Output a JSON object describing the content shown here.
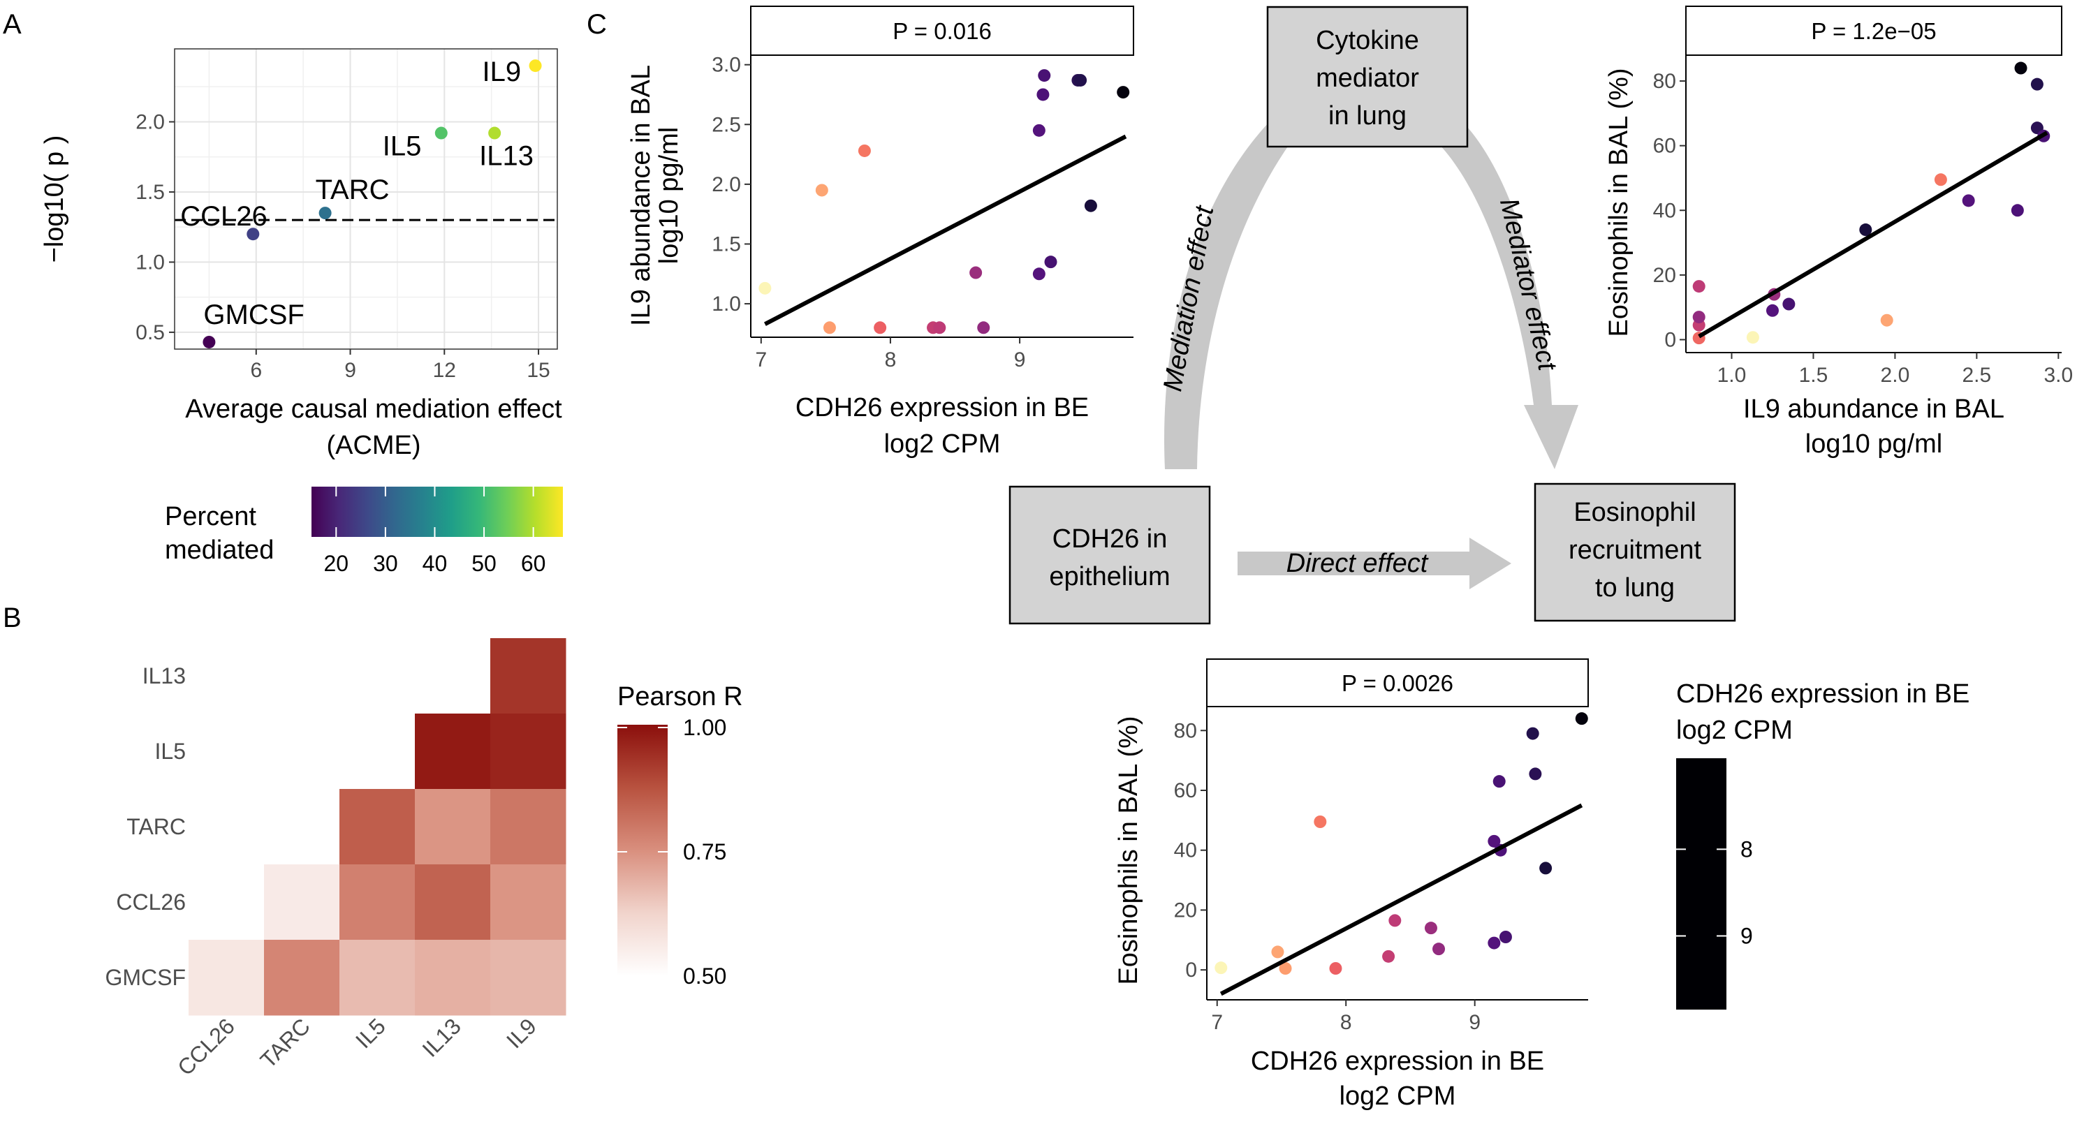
{
  "panel_labels": {
    "a": "A",
    "b": "B",
    "c": "C"
  },
  "colors": {
    "viridis": [
      "#440154",
      "#482878",
      "#3e4989",
      "#31688e",
      "#26828e",
      "#1f9e89",
      "#35b779",
      "#6ece58",
      "#b5de2b",
      "#fde725"
    ],
    "magma": [
      "#000004",
      "#1d1147",
      "#51127c",
      "#822681",
      "#b73779",
      "#e75263",
      "#fc8961",
      "#fec287",
      "#fcfdbf"
    ],
    "reds": [
      "#ffffff",
      "#f1d4cc",
      "#d98f7e",
      "#b8523f",
      "#8b0f0c"
    ]
  },
  "chart_data": [
    {
      "id": "A",
      "type": "scatter",
      "xlabel": "Average causal mediation effect",
      "xlabel2": "(ACME)",
      "ylabel": "−log10( p )",
      "xlim": [
        3.4,
        15.6
      ],
      "ylim": [
        0.38,
        2.52
      ],
      "xticks": [
        6,
        9,
        12,
        15
      ],
      "yticks": [
        0.5,
        1.0,
        1.5,
        2.0
      ],
      "ytick_labels": [
        "0.5",
        "1.0",
        "1.5",
        "2.0"
      ],
      "threshold": 1.3,
      "grid": true,
      "points": [
        {
          "label": "GMCSF",
          "x": 4.5,
          "y": 0.43,
          "pct": 14
        },
        {
          "label": "CCL26",
          "x": 5.9,
          "y": 1.2,
          "pct": 25
        },
        {
          "label": "TARC",
          "x": 8.2,
          "y": 1.35,
          "pct": 34
        },
        {
          "label": "IL5",
          "x": 11.9,
          "y": 1.92,
          "pct": 52
        },
        {
          "label": "IL13",
          "x": 13.6,
          "y": 1.92,
          "pct": 60
        },
        {
          "label": "IL9",
          "x": 14.9,
          "y": 2.4,
          "pct": 66
        }
      ],
      "legend": {
        "title_line1": "Percent",
        "title_line2": "mediated",
        "min": 15,
        "max": 66,
        "ticks": [
          20,
          30,
          40,
          50,
          60
        ]
      }
    },
    {
      "id": "B",
      "type": "heatmap",
      "row_labels": [
        "IL13",
        "IL5",
        "TARC",
        "CCL26",
        "GMCSF"
      ],
      "col_labels": [
        "CCL26",
        "TARC",
        "IL5",
        "IL13",
        "IL9"
      ],
      "cells": [
        {
          "row": "IL13",
          "col": "IL9",
          "r": 0.93
        },
        {
          "row": "IL5",
          "col": "IL13",
          "r": 0.98
        },
        {
          "row": "IL5",
          "col": "IL9",
          "r": 0.96
        },
        {
          "row": "TARC",
          "col": "IL5",
          "r": 0.85
        },
        {
          "row": "TARC",
          "col": "IL13",
          "r": 0.74
        },
        {
          "row": "TARC",
          "col": "IL9",
          "r": 0.8
        },
        {
          "row": "CCL26",
          "col": "TARC",
          "r": 0.56
        },
        {
          "row": "CCL26",
          "col": "IL5",
          "r": 0.78
        },
        {
          "row": "CCL26",
          "col": "IL13",
          "r": 0.84
        },
        {
          "row": "CCL26",
          "col": "IL9",
          "r": 0.74
        },
        {
          "row": "GMCSF",
          "col": "CCL26",
          "r": 0.57
        },
        {
          "row": "GMCSF",
          "col": "TARC",
          "r": 0.77
        },
        {
          "row": "GMCSF",
          "col": "IL5",
          "r": 0.67
        },
        {
          "row": "GMCSF",
          "col": "IL13",
          "r": 0.69
        },
        {
          "row": "GMCSF",
          "col": "IL9",
          "r": 0.68
        }
      ],
      "legend": {
        "title": "Pearson R",
        "min": 0.5,
        "max": 1.0,
        "ticks": [
          "1.00",
          "0.75",
          "0.50"
        ]
      }
    },
    {
      "id": "C1",
      "type": "scatter",
      "strip": "P = 0.016",
      "xlabel": "CDH26 expression in BE",
      "xlabel2": "log2 CPM",
      "ylabel": "IL9 abundance in BAL",
      "ylabel2": "log10 pg/ml",
      "xlim": [
        6.92,
        9.88
      ],
      "ylim": [
        0.72,
        3.08
      ],
      "xticks": [
        7,
        8,
        9
      ],
      "yticks": [
        1.0,
        1.5,
        2.0,
        2.5,
        3.0
      ],
      "ytick_labels": [
        "1.0",
        "1.5",
        "2.0",
        "2.5",
        "3.0"
      ],
      "fit": {
        "x": [
          7.03,
          9.82
        ],
        "y": [
          0.83,
          2.4
        ]
      },
      "points": [
        {
          "x": 7.03,
          "y": 1.13,
          "c": 7.0
        },
        {
          "x": 7.47,
          "y": 1.95,
          "c": 7.5
        },
        {
          "x": 7.53,
          "y": 0.8,
          "c": 7.55
        },
        {
          "x": 7.8,
          "y": 2.28,
          "c": 7.8
        },
        {
          "x": 7.92,
          "y": 0.8,
          "c": 7.95
        },
        {
          "x": 8.33,
          "y": 0.8,
          "c": 8.3
        },
        {
          "x": 8.38,
          "y": 0.8,
          "c": 8.35
        },
        {
          "x": 8.66,
          "y": 1.26,
          "c": 8.6
        },
        {
          "x": 8.72,
          "y": 0.8,
          "c": 8.65
        },
        {
          "x": 9.15,
          "y": 1.25,
          "c": 9.1
        },
        {
          "x": 9.15,
          "y": 2.45,
          "c": 9.1
        },
        {
          "x": 9.18,
          "y": 2.75,
          "c": 9.15
        },
        {
          "x": 9.19,
          "y": 2.91,
          "c": 9.18
        },
        {
          "x": 9.24,
          "y": 1.35,
          "c": 9.2
        },
        {
          "x": 9.45,
          "y": 2.87,
          "c": 9.4
        },
        {
          "x": 9.47,
          "y": 2.87,
          "c": 9.45
        },
        {
          "x": 9.55,
          "y": 1.82,
          "c": 9.55
        },
        {
          "x": 9.8,
          "y": 2.77,
          "c": 9.8
        }
      ]
    },
    {
      "id": "C2",
      "type": "scatter",
      "strip": "P = 1.2e−05",
      "xlabel": "IL9 abundance in BAL",
      "xlabel2": "log10 pg/ml",
      "ylabel": "Eosinophils in BAL (%)",
      "xlim": [
        0.72,
        3.02
      ],
      "ylim": [
        -4,
        88
      ],
      "xticks": [
        1.0,
        1.5,
        2.0,
        2.5,
        3.0
      ],
      "xtick_labels": [
        "1.0",
        "1.5",
        "2.0",
        "2.5",
        "3.0"
      ],
      "yticks": [
        0,
        20,
        40,
        60,
        80
      ],
      "fit": {
        "x": [
          0.8,
          2.93
        ],
        "y": [
          1,
          64
        ]
      },
      "points": [
        {
          "x": 0.8,
          "y": 0.5,
          "c": 7.9
        },
        {
          "x": 0.8,
          "y": 4.5,
          "c": 8.3
        },
        {
          "x": 0.8,
          "y": 7,
          "c": 8.65
        },
        {
          "x": 0.8,
          "y": 16.5,
          "c": 8.35
        },
        {
          "x": 1.13,
          "y": 0.7,
          "c": 7.0
        },
        {
          "x": 1.25,
          "y": 9,
          "c": 9.1
        },
        {
          "x": 1.26,
          "y": 14,
          "c": 8.6
        },
        {
          "x": 1.35,
          "y": 11,
          "c": 9.2
        },
        {
          "x": 1.82,
          "y": 34,
          "c": 9.55
        },
        {
          "x": 1.95,
          "y": 6,
          "c": 7.5
        },
        {
          "x": 2.28,
          "y": 49.5,
          "c": 7.8
        },
        {
          "x": 2.45,
          "y": 43,
          "c": 9.1
        },
        {
          "x": 2.75,
          "y": 40,
          "c": 9.15
        },
        {
          "x": 2.77,
          "y": 84,
          "c": 9.8
        },
        {
          "x": 2.87,
          "y": 79,
          "c": 9.45
        },
        {
          "x": 2.87,
          "y": 65.5,
          "c": 9.4
        },
        {
          "x": 2.91,
          "y": 63,
          "c": 9.18
        }
      ]
    },
    {
      "id": "C3",
      "type": "scatter",
      "strip": "P = 0.0026",
      "xlabel": "CDH26 expression in BE",
      "xlabel2": "log2 CPM",
      "ylabel": "Eosinophils in BAL (%)",
      "xlim": [
        6.92,
        9.88
      ],
      "ylim": [
        -10,
        88
      ],
      "xticks": [
        7,
        8,
        9
      ],
      "yticks": [
        0,
        20,
        40,
        60,
        80
      ],
      "fit": {
        "x": [
          7.03,
          9.83
        ],
        "y": [
          -8,
          55
        ]
      },
      "points": [
        {
          "x": 7.03,
          "y": 0.7,
          "c": 7.0
        },
        {
          "x": 7.47,
          "y": 6,
          "c": 7.5
        },
        {
          "x": 7.53,
          "y": 0.5,
          "c": 7.55
        },
        {
          "x": 7.8,
          "y": 49.5,
          "c": 7.8
        },
        {
          "x": 7.92,
          "y": 0.5,
          "c": 7.95
        },
        {
          "x": 8.33,
          "y": 4.5,
          "c": 8.3
        },
        {
          "x": 8.38,
          "y": 16.5,
          "c": 8.35
        },
        {
          "x": 8.66,
          "y": 14,
          "c": 8.6
        },
        {
          "x": 8.72,
          "y": 7,
          "c": 8.65
        },
        {
          "x": 9.15,
          "y": 9,
          "c": 9.1
        },
        {
          "x": 9.15,
          "y": 43,
          "c": 9.1
        },
        {
          "x": 9.2,
          "y": 40,
          "c": 9.15
        },
        {
          "x": 9.19,
          "y": 63,
          "c": 9.18
        },
        {
          "x": 9.24,
          "y": 11,
          "c": 9.2
        },
        {
          "x": 9.45,
          "y": 79,
          "c": 9.45
        },
        {
          "x": 9.47,
          "y": 65.5,
          "c": 9.4
        },
        {
          "x": 9.55,
          "y": 34,
          "c": 9.55
        },
        {
          "x": 9.83,
          "y": 84,
          "c": 9.8
        }
      ],
      "legend": {
        "title_line1": "CDH26 expression in BE",
        "title_line2": "log2 CPM",
        "min": 6.95,
        "max": 9.85,
        "ticks": [
          8,
          9
        ]
      }
    }
  ],
  "diagram": {
    "boxes": {
      "cytokine": [
        "Cytokine",
        "mediator",
        "in lung"
      ],
      "cdh26": [
        "CDH26 in",
        "epithelium"
      ],
      "eos": [
        "Eosinophil",
        "recruitment",
        "to lung"
      ]
    },
    "arrows": {
      "mediation": "Mediation effect",
      "mediator": "Mediator effect",
      "direct": "Direct effect"
    }
  }
}
